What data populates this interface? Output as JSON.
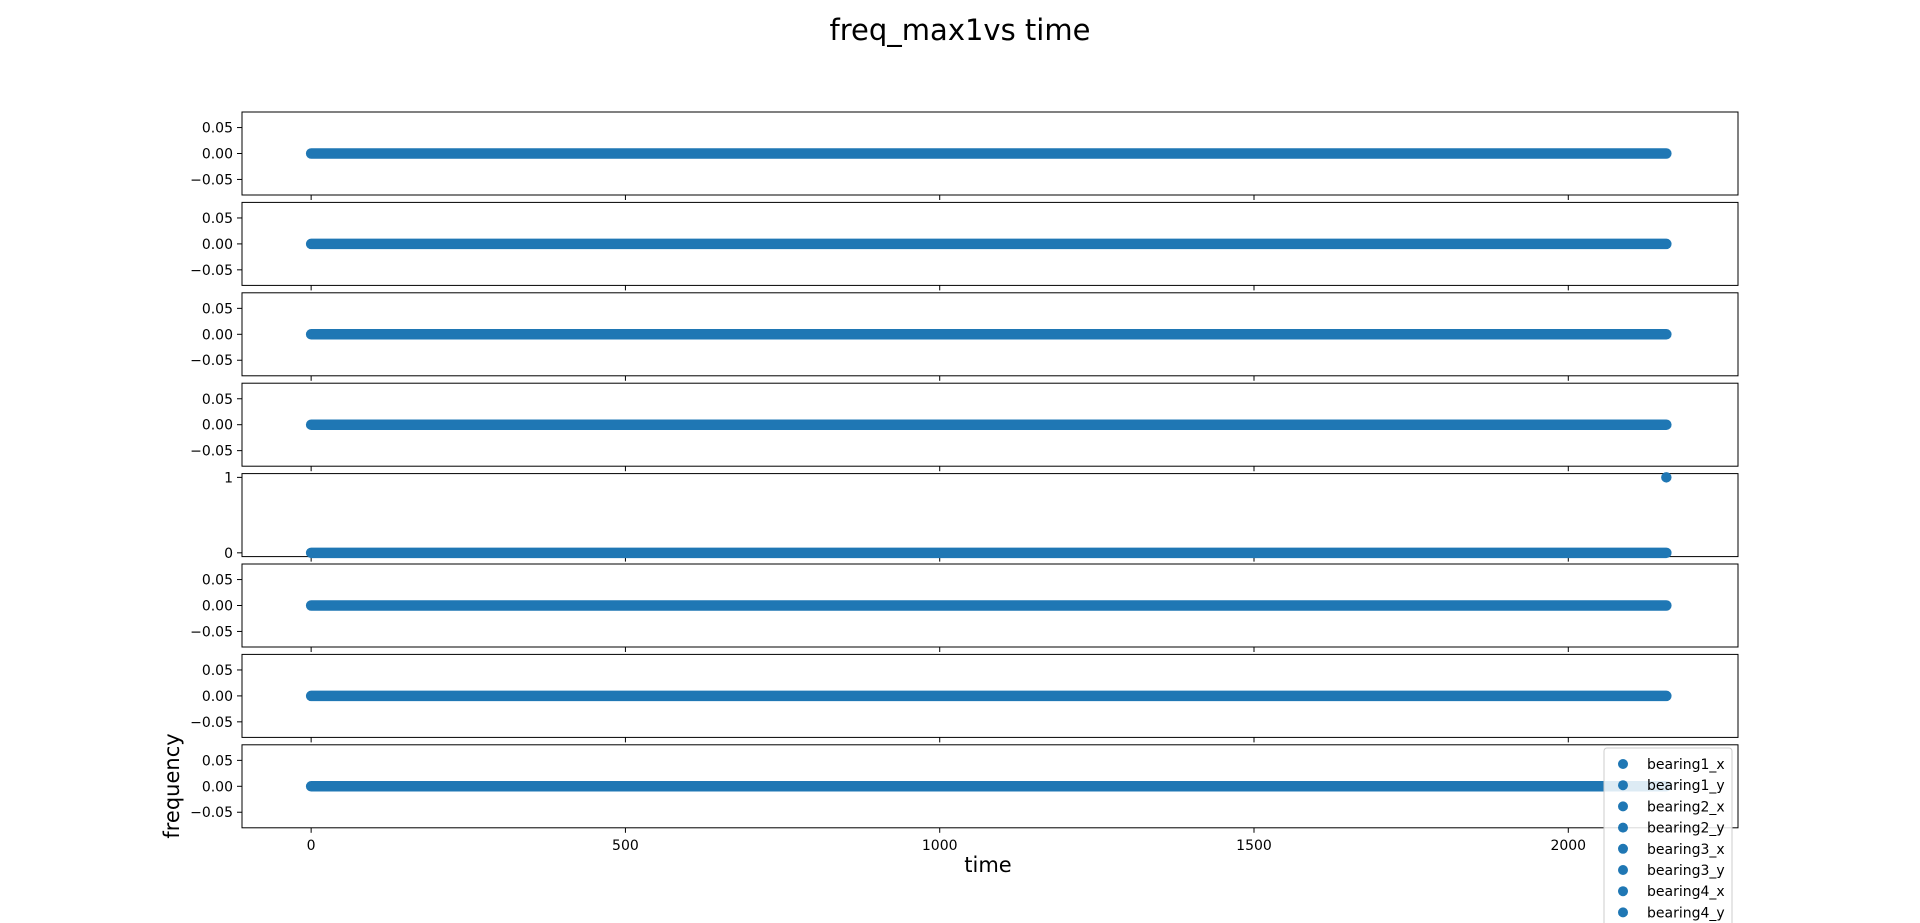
{
  "chart_data": {
    "type": "scatter",
    "title": "freq_max1vs time",
    "xlabel": "time",
    "ylabel": "frequency",
    "xlim": [
      -110,
      2270
    ],
    "xticks": [
      0,
      500,
      1000,
      1500,
      2000
    ],
    "xtick_labels": [
      "0",
      "500",
      "1000",
      "1500",
      "2000"
    ],
    "x_range": [
      0,
      2156
    ],
    "marker_color": "#1f77b4",
    "legend_position": "lower right",
    "legend": [
      "bearing1_x",
      "bearing1_y",
      "bearing2_x",
      "bearing2_y",
      "bearing3_x",
      "bearing3_y",
      "bearing4_x",
      "bearing4_y"
    ],
    "subplots": [
      {
        "baseline": 0,
        "ylim": [
          -0.08,
          0.08
        ],
        "yticks": [
          0.05,
          0.0,
          -0.05
        ],
        "ytick_labels": [
          "0.05",
          "0.00",
          "−0.05"
        ],
        "outliers": []
      },
      {
        "baseline": 0,
        "ylim": [
          -0.08,
          0.08
        ],
        "yticks": [
          0.05,
          0.0,
          -0.05
        ],
        "ytick_labels": [
          "0.05",
          "0.00",
          "−0.05"
        ],
        "outliers": []
      },
      {
        "baseline": 0,
        "ylim": [
          -0.08,
          0.08
        ],
        "yticks": [
          0.05,
          0.0,
          -0.05
        ],
        "ytick_labels": [
          "0.05",
          "0.00",
          "−0.05"
        ],
        "outliers": []
      },
      {
        "baseline": 0,
        "ylim": [
          -0.08,
          0.08
        ],
        "yticks": [
          0.05,
          0.0,
          -0.05
        ],
        "ytick_labels": [
          "0.05",
          "0.00",
          "−0.05"
        ],
        "outliers": []
      },
      {
        "baseline": 0,
        "ylim": [
          -0.05,
          1.05
        ],
        "yticks": [
          1,
          0
        ],
        "ytick_labels": [
          "1",
          "0"
        ],
        "outliers": [
          {
            "x": 2156,
            "y": 1
          }
        ]
      },
      {
        "baseline": 0,
        "ylim": [
          -0.08,
          0.08
        ],
        "yticks": [
          0.05,
          0.0,
          -0.05
        ],
        "ytick_labels": [
          "0.05",
          "0.00",
          "−0.05"
        ],
        "outliers": []
      },
      {
        "baseline": 0,
        "ylim": [
          -0.08,
          0.08
        ],
        "yticks": [
          0.05,
          0.0,
          -0.05
        ],
        "ytick_labels": [
          "0.05",
          "0.00",
          "−0.05"
        ],
        "outliers": []
      },
      {
        "baseline": 0,
        "ylim": [
          -0.08,
          0.08
        ],
        "yticks": [
          0.05,
          0.0,
          -0.05
        ],
        "ytick_labels": [
          "0.05",
          "0.00",
          "−0.05"
        ],
        "outliers": []
      }
    ]
  }
}
